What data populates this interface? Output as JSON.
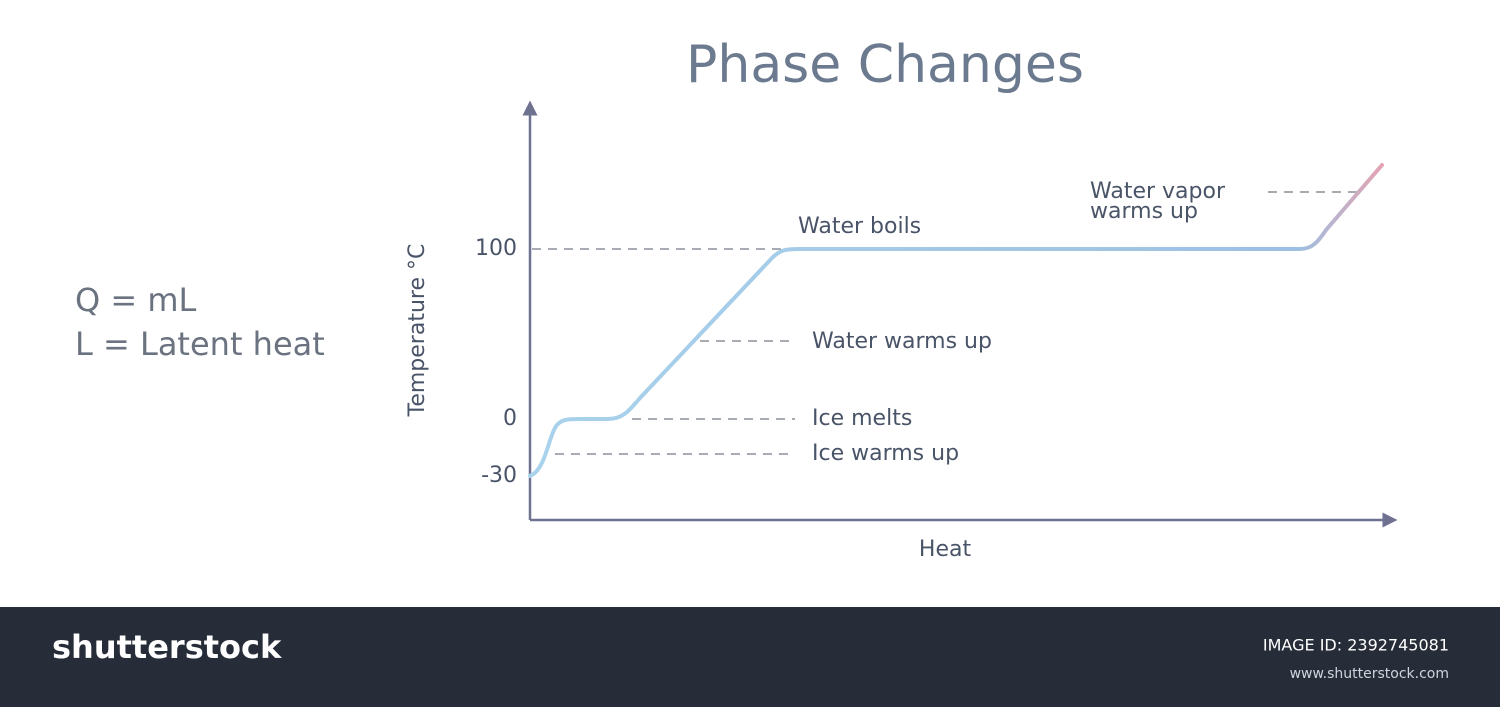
{
  "title": "Phase Changes",
  "formula": [
    "Q = mL",
    "L = Latent heat"
  ],
  "axes": {
    "y_label": "Temperature  °C",
    "x_label": "Heat",
    "y_ticks": [
      "100",
      "0",
      "-30"
    ]
  },
  "annotations": {
    "water_boils": "Water boils",
    "water_warms": "Water warms up",
    "ice_melts": "Ice melts",
    "ice_warms": "Ice warms up",
    "vapor_warms": [
      "Water vapor",
      "warms up"
    ]
  },
  "footer": {
    "brand": "shutterstock",
    "image_id": "IMAGE ID: 2392745081",
    "url": "www.shutterstock.com"
  }
}
